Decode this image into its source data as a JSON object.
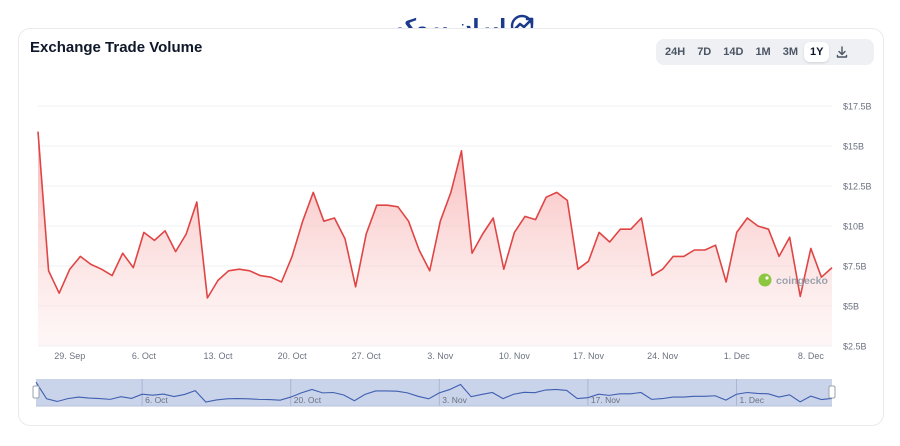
{
  "chart_data": {
    "type": "area",
    "title": "Exchange Trade Volume",
    "xlabel": "",
    "ylabel": "",
    "y_tick_labels": [
      "$2.5B",
      "$5B",
      "$7.5B",
      "$10B",
      "$12.5B",
      "$15B",
      "$17.5B"
    ],
    "y_ticks": [
      2.5,
      5,
      7.5,
      10,
      12.5,
      15,
      17.5
    ],
    "ylim": [
      2.5,
      17.5
    ],
    "unit": "B",
    "x_tick_labels": [
      "29. Sep",
      "6. Oct",
      "13. Oct",
      "20. Oct",
      "27. Oct",
      "3. Nov",
      "10. Nov",
      "17. Nov",
      "24. Nov",
      "1. Dec",
      "8. Dec"
    ],
    "x_tick_days": [
      3,
      10,
      17,
      24,
      31,
      38,
      45,
      52,
      59,
      66,
      73
    ],
    "navigator_tick_labels": [
      "6. Oct",
      "20. Oct",
      "3. Nov",
      "17. Nov",
      "1. Dec"
    ],
    "navigator_tick_days": [
      10,
      24,
      38,
      52,
      66
    ],
    "x_start": "26 Sep",
    "x_end": "12 Dec",
    "series": [
      {
        "name": "",
        "color": "#e04545",
        "values": [
          15.9,
          7.2,
          5.8,
          7.3,
          8.1,
          7.6,
          7.3,
          6.9,
          8.3,
          7.4,
          9.6,
          9.1,
          9.7,
          8.4,
          9.5,
          11.5,
          5.5,
          6.6,
          7.2,
          7.3,
          7.2,
          6.9,
          6.8,
          6.5,
          8.1,
          10.3,
          12.1,
          10.3,
          10.5,
          9.2,
          6.2,
          9.5,
          11.3,
          11.3,
          11.2,
          10.3,
          8.5,
          7.2,
          10.3,
          12.1,
          14.7,
          8.3,
          9.5,
          10.5,
          7.3,
          9.6,
          10.6,
          10.4,
          11.8,
          12.1,
          11.6,
          7.3,
          7.8,
          9.6,
          9.0,
          9.8,
          9.8,
          10.5,
          6.9,
          7.3,
          8.1,
          8.1,
          8.5,
          8.5,
          8.8,
          6.5,
          9.6,
          10.5,
          10.0,
          9.8,
          8.1,
          9.3,
          5.6,
          8.6,
          6.8,
          7.4
        ]
      }
    ],
    "grid": true,
    "legend": "none",
    "watermark": "coingecko"
  },
  "controls": {
    "ranges": [
      "24H",
      "7D",
      "14D",
      "1M",
      "3M",
      "1Y"
    ],
    "active_range": "1Y",
    "download_icon": "download-icon"
  },
  "logo": {
    "text": "ایران بروکر",
    "icon": "trend-chart-icon"
  },
  "colors": {
    "line": "#e04545",
    "area_top": "#f8b4b4",
    "grid": "#eef0f3",
    "axis_text": "#6b7280",
    "navigator_fill": "#c9d3ea",
    "navigator_line": "#3f5fb0"
  }
}
